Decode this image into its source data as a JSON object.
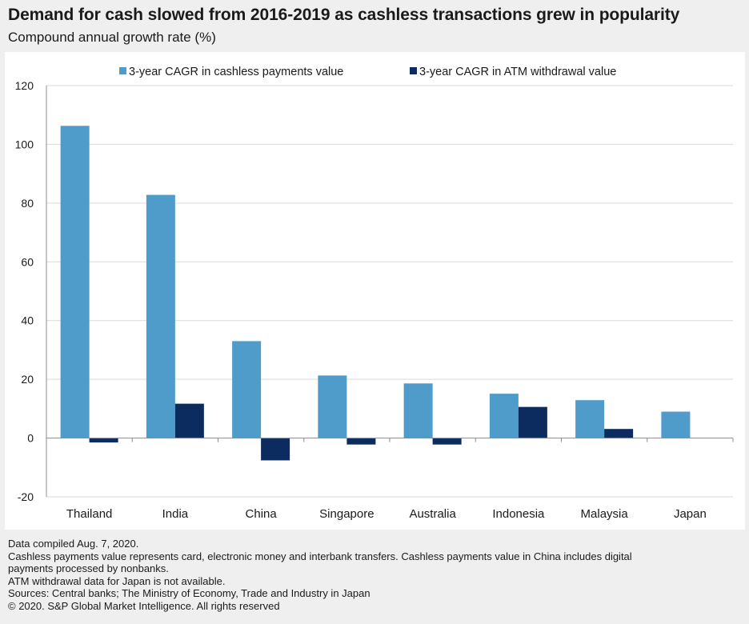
{
  "header": {
    "title": "Demand for cash slowed from 2016-2019 as cashless transactions grew in popularity",
    "subtitle": "Compound annual growth rate (%)"
  },
  "colors": {
    "cashless": "#4f9bc9",
    "atm": "#0c2b5e",
    "grid": "#d9d9d9",
    "axis": "#8c8c8c"
  },
  "chart_data": {
    "type": "bar",
    "categories": [
      "Thailand",
      "India",
      "China",
      "Singapore",
      "Australia",
      "Indonesia",
      "Malaysia",
      "Japan"
    ],
    "series": [
      {
        "name": "3-year CAGR in cashless payments value",
        "values": [
          106.3,
          82.8,
          33.0,
          21.3,
          18.6,
          15.1,
          12.9,
          9.0
        ]
      },
      {
        "name": "3-year CAGR in ATM withdrawal value",
        "values": [
          -1.5,
          11.7,
          -7.6,
          -2.2,
          -2.2,
          10.6,
          3.1,
          null
        ]
      }
    ],
    "ylim": [
      -20,
      120
    ],
    "yticks": [
      -20,
      0,
      20,
      40,
      60,
      80,
      100,
      120
    ],
    "ytick_labels": [
      "-20",
      "0",
      "20",
      "40",
      "60",
      "80",
      "100",
      "120"
    ],
    "grid": true,
    "legend": "top-center",
    "xlabel": "",
    "ylabel": ""
  },
  "footnotes": [
    "Data compiled Aug. 7, 2020.",
    "Cashless payments value represents card, electronic money and interbank transfers. Cashless payments value in China includes digital",
    "payments processed by nonbanks.",
    "ATM withdrawal data for Japan is not available.",
    "Sources: Central banks; The Ministry of Economy, Trade and Industry in Japan",
    "© 2020. S&P Global Market Intelligence. All rights reserved"
  ]
}
